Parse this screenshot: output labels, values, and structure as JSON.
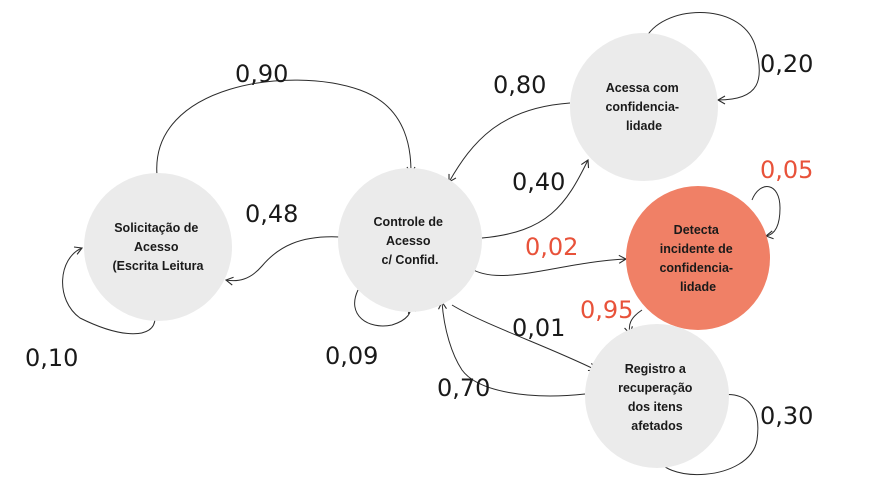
{
  "nodes": {
    "solicitacao": {
      "lines": [
        "Solicitação de",
        "Acesso",
        "(Escrita Leitura"
      ]
    },
    "controle": {
      "lines": [
        "Controle de",
        "Acesso",
        "c/ Confid."
      ]
    },
    "acessa": {
      "lines": [
        "Acessa com",
        "confidencia-",
        "lidade"
      ]
    },
    "detecta": {
      "lines": [
        "Detecta",
        "incidente de",
        "confidencia-",
        "lidade"
      ]
    },
    "registro": {
      "lines": [
        "Registro a",
        "recuperação",
        "dos itens",
        "afetados"
      ]
    }
  },
  "edges": {
    "sol_self": "0,10",
    "sol_to_ctrl": "0,90",
    "ctrl_to_sol": "0,48",
    "ctrl_self": "0,09",
    "ctrl_to_acessa": "0,40",
    "acessa_to_ctrl": "0,80",
    "acessa_self": "0,20",
    "ctrl_to_detecta": "0,02",
    "detecta_self": "0,05",
    "detecta_to_registro": "0,95",
    "ctrl_to_registro": "0,01",
    "registro_to_ctrl": "0,70",
    "registro_self": "0,30"
  },
  "colors": {
    "node_fill": "#ebebeb",
    "node_highlight": "#f08066",
    "label_highlight": "#e8523a",
    "edge": "#2b2b2b"
  }
}
